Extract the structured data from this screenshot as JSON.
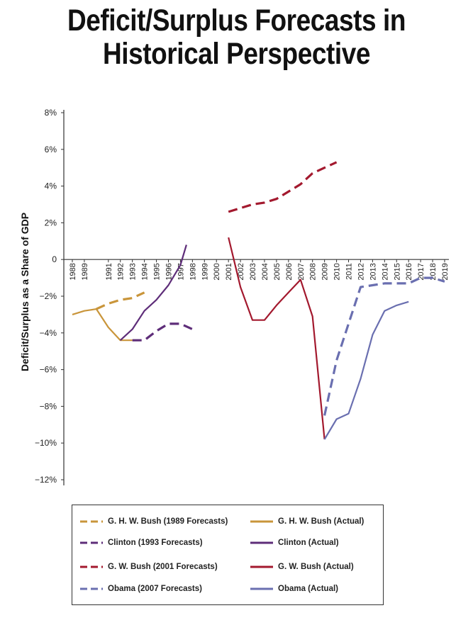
{
  "page": {
    "title_line1": "Deficit/Surplus Forecasts in",
    "title_line2": "Historical Perspective"
  },
  "colors": {
    "ghwbush": "#c9953a",
    "clinton": "#5e2d79",
    "gwbush": "#a3192e",
    "obama": "#6a6fb0"
  },
  "chart_data": {
    "type": "line",
    "ylabel": "Deficit/Surplus as a Share of GDP",
    "ylim": [
      -12,
      8
    ],
    "y_ticks": [
      8,
      6,
      4,
      2,
      0,
      -2,
      -4,
      -6,
      -8,
      -10,
      -12
    ],
    "y_tick_labels": [
      "8%",
      "6%",
      "4%",
      "2%",
      "0",
      "−2%",
      "−4%",
      "−6%",
      "−8%",
      "−10%",
      "−12%"
    ],
    "x_ticks": [
      1988,
      1989,
      1991,
      1992,
      1993,
      1994,
      1995,
      1996,
      1997,
      1998,
      1999,
      2000,
      2001,
      2002,
      2003,
      2004,
      2005,
      2006,
      2007,
      2008,
      2009,
      2010,
      2011,
      2012,
      2013,
      2014,
      2015,
      2016,
      2017,
      2018,
      2019
    ],
    "x_tick_labels": [
      "1988",
      "1989",
      "1991",
      "1992",
      "1993",
      "1994",
      "1995",
      "1996",
      "1997",
      "1998",
      "1999",
      "2000",
      "2001",
      "2002",
      "2003",
      "2004",
      "2005",
      "2006",
      "2007",
      "2008",
      "2009",
      "2010",
      "2011",
      "2012",
      "2013",
      "2014",
      "2015",
      "2016",
      "2017",
      "2018",
      "2019"
    ],
    "grid": false,
    "legend_position": "bottom",
    "series": [
      {
        "name": "G. H. W. Bush (1989 Forecasts)",
        "color_key": "ghwbush",
        "dashed": true,
        "points": [
          [
            1990,
            -2.7
          ],
          [
            1991,
            -2.4
          ],
          [
            1992,
            -2.2
          ],
          [
            1993,
            -2.1
          ],
          [
            1994,
            -1.8
          ]
        ]
      },
      {
        "name": "G. H. W. Bush (Actual)",
        "color_key": "ghwbush",
        "dashed": false,
        "points": [
          [
            1988,
            -3.0
          ],
          [
            1989,
            -2.8
          ],
          [
            1990,
            -2.7
          ],
          [
            1991,
            -3.7
          ],
          [
            1992,
            -4.4
          ],
          [
            1993,
            -4.4
          ]
        ]
      },
      {
        "name": "Clinton (1993 Forecasts)",
        "color_key": "clinton",
        "dashed": true,
        "points": [
          [
            1993,
            -4.4
          ],
          [
            1994,
            -4.4
          ],
          [
            1995,
            -3.9
          ],
          [
            1996,
            -3.5
          ],
          [
            1997,
            -3.5
          ],
          [
            1998,
            -3.8
          ]
        ]
      },
      {
        "name": "Clinton (Actual)",
        "color_key": "clinton",
        "dashed": false,
        "points": [
          [
            1992,
            -4.4
          ],
          [
            1993,
            -3.8
          ],
          [
            1994,
            -2.8
          ],
          [
            1995,
            -2.2
          ],
          [
            1996,
            -1.4
          ],
          [
            1997,
            -0.3
          ],
          [
            1997.5,
            0.8
          ]
        ]
      },
      {
        "name": "G. W. Bush (2001 Forecasts)",
        "color_key": "gwbush",
        "dashed": true,
        "points": [
          [
            2001,
            2.6
          ],
          [
            2002,
            2.8
          ],
          [
            2003,
            3.0
          ],
          [
            2004,
            3.1
          ],
          [
            2005,
            3.3
          ],
          [
            2006,
            3.7
          ],
          [
            2007,
            4.1
          ],
          [
            2008,
            4.7
          ],
          [
            2009,
            5.0
          ],
          [
            2010,
            5.3
          ]
        ]
      },
      {
        "name": "G. W. Bush (Actual)",
        "color_key": "gwbush",
        "dashed": false,
        "points": [
          [
            2001,
            1.2
          ],
          [
            2002,
            -1.5
          ],
          [
            2003,
            -3.3
          ],
          [
            2004,
            -3.3
          ],
          [
            2005,
            -2.5
          ],
          [
            2006,
            -1.8
          ],
          [
            2007,
            -1.1
          ],
          [
            2008,
            -3.1
          ],
          [
            2009,
            -9.8
          ]
        ]
      },
      {
        "name": "Obama (2007 Forecasts)",
        "color_key": "obama",
        "dashed": true,
        "points": [
          [
            2009,
            -8.5
          ],
          [
            2010,
            -5.5
          ],
          [
            2011,
            -3.5
          ],
          [
            2012,
            -1.5
          ],
          [
            2013,
            -1.4
          ],
          [
            2014,
            -1.3
          ],
          [
            2015,
            -1.3
          ],
          [
            2016,
            -1.3
          ],
          [
            2017,
            -1.0
          ],
          [
            2018,
            -1.0
          ],
          [
            2019,
            -1.2
          ]
        ]
      },
      {
        "name": "Obama (Actual)",
        "color_key": "obama",
        "dashed": false,
        "points": [
          [
            2009,
            -9.8
          ],
          [
            2010,
            -8.7
          ],
          [
            2011,
            -8.4
          ],
          [
            2012,
            -6.5
          ],
          [
            2013,
            -4.1
          ],
          [
            2014,
            -2.8
          ],
          [
            2015,
            -2.5
          ],
          [
            2016,
            -2.3
          ]
        ]
      }
    ]
  },
  "legend": [
    {
      "label": "G. H. W. Bush (1989 Forecasts)",
      "color_key": "ghwbush",
      "dashed": true
    },
    {
      "label": "G. H. W. Bush (Actual)",
      "color_key": "ghwbush",
      "dashed": false
    },
    {
      "label": "Clinton (1993 Forecasts)",
      "color_key": "clinton",
      "dashed": true
    },
    {
      "label": "Clinton (Actual)",
      "color_key": "clinton",
      "dashed": false
    },
    {
      "label": "G. W. Bush (2001 Forecasts)",
      "color_key": "gwbush",
      "dashed": true
    },
    {
      "label": "G. W. Bush (Actual)",
      "color_key": "gwbush",
      "dashed": false
    },
    {
      "label": "Obama (2007 Forecasts)",
      "color_key": "obama",
      "dashed": true
    },
    {
      "label": "Obama (Actual)",
      "color_key": "obama",
      "dashed": false
    }
  ]
}
